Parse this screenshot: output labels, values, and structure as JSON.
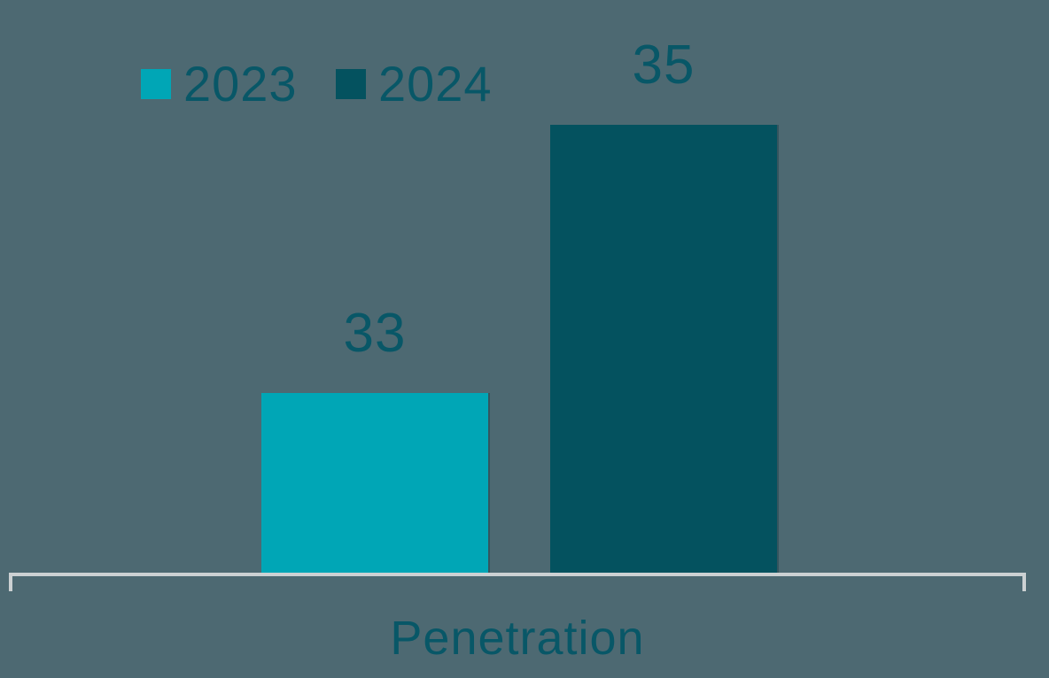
{
  "chart_data": {
    "type": "bar",
    "title": "",
    "categories": [
      "Penetration"
    ],
    "series": [
      {
        "name": "2023",
        "values": [
          33
        ],
        "color": "#00A6B6"
      },
      {
        "name": "2024",
        "values": [
          35
        ],
        "color": "#04525F"
      }
    ],
    "xlabel": "Penetration",
    "ylabel": "",
    "ylim_estimated": [
      31.66,
      36.1
    ],
    "grid": false,
    "legend_position": "top-left",
    "data_labels_visible": true,
    "axis_ticks_visible": false
  },
  "colors": {
    "background": "#4D6972",
    "text": "#085767",
    "axis_line": "#CCD1D3"
  }
}
